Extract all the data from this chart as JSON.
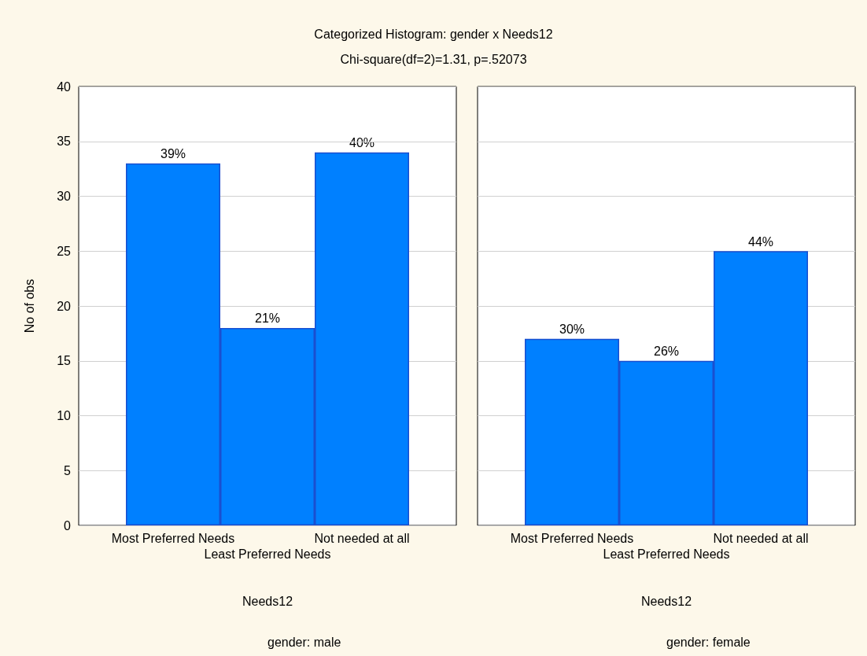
{
  "chart_data": [
    {
      "type": "bar",
      "title": "Categorized Histogram: gender x Needs12",
      "subtitle": "Chi-square(df=2)=1.31, p=.52073",
      "categories": [
        "Most Preferred Needs",
        "Least Preferred Needs",
        "Not needed at all"
      ],
      "values": [
        33,
        18,
        34
      ],
      "color": "#0080ff",
      "xlabel": "Needs12",
      "ylabel": "No of obs",
      "annotations": [
        "gender: male",
        {
          "text": "39%",
          "x": "Most Preferred Needs",
          "y": 33
        },
        {
          "text": "21%",
          "x": "Least Preferred Needs",
          "y": 18
        },
        {
          "text": "40%",
          "x": "Not needed at all",
          "y": 34
        }
      ],
      "ylim": [
        0,
        40
      ],
      "yticks": [
        0,
        5,
        10,
        15,
        20,
        25,
        30,
        35,
        40
      ],
      "grid": "y"
    },
    {
      "type": "bar",
      "categories": [
        "Most Preferred Needs",
        "Least Preferred Needs",
        "Not needed at all"
      ],
      "values": [
        17,
        15,
        25
      ],
      "color": "#0080ff",
      "xlabel": "Needs12",
      "annotations": [
        "gender: female",
        {
          "text": "30%",
          "x": "Most Preferred Needs",
          "y": 17
        },
        {
          "text": "26%",
          "x": "Least Preferred Needs",
          "y": 15
        },
        {
          "text": "44%",
          "x": "Not needed at all",
          "y": 25
        }
      ],
      "ylim": [
        0,
        40
      ],
      "yticks": [
        0,
        5,
        10,
        15,
        20,
        25,
        30,
        35,
        40
      ],
      "grid": "y",
      "tick_labels": "x"
    }
  ]
}
